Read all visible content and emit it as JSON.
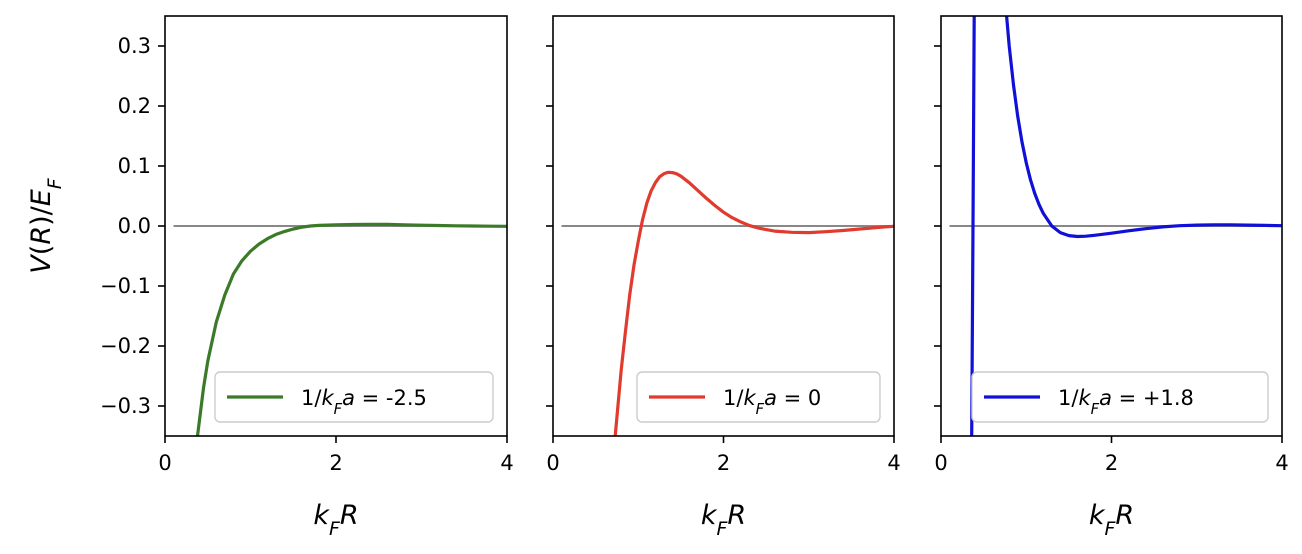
{
  "chart_data": [
    {
      "type": "line",
      "xlabel": "k_F R",
      "ylabel": "V(R)/E_F",
      "xlim": [
        0,
        4
      ],
      "ylim": [
        -0.35,
        0.35
      ],
      "xticks": [
        "0",
        "2",
        "4"
      ],
      "yticks": [
        "0.3",
        "0.2",
        "0.1",
        "0.0",
        "−0.1",
        "−0.2",
        "−0.3"
      ],
      "reference_line": {
        "y": 0,
        "x_from": 0.1,
        "x_to": 4,
        "color": "#888888"
      },
      "legend_position": "lower-right",
      "series": [
        {
          "name": "1/k_F a = -2.5",
          "legend_prefix": "1/",
          "legend_suffix": " = -2.5",
          "color": "#3a7a28",
          "x": [
            0.38,
            0.45,
            0.5,
            0.6,
            0.7,
            0.8,
            0.9,
            1.0,
            1.1,
            1.2,
            1.3,
            1.4,
            1.5,
            1.6,
            1.7,
            1.8,
            1.9,
            2.0,
            2.2,
            2.4,
            2.6,
            2.8,
            3.0,
            3.2,
            3.4,
            3.6,
            3.8,
            4.0
          ],
          "y": [
            -0.35,
            -0.27,
            -0.225,
            -0.16,
            -0.115,
            -0.08,
            -0.058,
            -0.042,
            -0.03,
            -0.021,
            -0.014,
            -0.009,
            -0.005,
            -0.002,
            0.0,
            0.001,
            0.0015,
            0.002,
            0.0025,
            0.0028,
            0.0026,
            0.002,
            0.0014,
            0.0009,
            0.0004,
            0.0,
            -0.0003,
            -0.0005
          ]
        },
        {
          "name": "1/k_F a = 0",
          "legend_prefix": "1/",
          "legend_suffix": " = 0",
          "color": "#e03b2e",
          "x": [
            0.73,
            0.8,
            0.85,
            0.9,
            0.95,
            1.0,
            1.05,
            1.1,
            1.15,
            1.2,
            1.25,
            1.3,
            1.35,
            1.4,
            1.45,
            1.5,
            1.6,
            1.7,
            1.8,
            1.9,
            2.0,
            2.1,
            2.2,
            2.3,
            2.4,
            2.5,
            2.6,
            2.8,
            3.0,
            3.2,
            3.4,
            3.6,
            3.8,
            4.0
          ],
          "y": [
            -0.35,
            -0.24,
            -0.175,
            -0.115,
            -0.065,
            -0.025,
            0.01,
            0.038,
            0.058,
            0.072,
            0.082,
            0.087,
            0.0895,
            0.089,
            0.087,
            0.083,
            0.072,
            0.059,
            0.046,
            0.034,
            0.023,
            0.014,
            0.007,
            0.001,
            -0.003,
            -0.006,
            -0.0085,
            -0.0105,
            -0.011,
            -0.0095,
            -0.0075,
            -0.005,
            -0.0025,
            -0.0005
          ]
        },
        {
          "name": "1/k_F a = +1.8",
          "legend_prefix": "1/",
          "legend_suffix": " = +1.8",
          "color": "#1010d8",
          "x_left": [
            0.36,
            0.375,
            0.39
          ],
          "y_left": [
            -0.35,
            0.0,
            0.35
          ],
          "x": [
            0.77,
            0.8,
            0.85,
            0.9,
            0.95,
            1.0,
            1.05,
            1.1,
            1.15,
            1.2,
            1.3,
            1.4,
            1.5,
            1.6,
            1.7,
            1.8,
            2.0,
            2.2,
            2.4,
            2.6,
            2.8,
            3.0,
            3.2,
            3.4,
            3.6,
            3.8,
            4.0
          ],
          "y": [
            0.35,
            0.3,
            0.235,
            0.183,
            0.14,
            0.105,
            0.077,
            0.054,
            0.036,
            0.021,
            0.0,
            -0.011,
            -0.016,
            -0.0175,
            -0.017,
            -0.0155,
            -0.012,
            -0.008,
            -0.0045,
            -0.0015,
            0.0005,
            0.0015,
            0.002,
            0.002,
            0.0015,
            0.001,
            0.0005
          ]
        }
      ]
    }
  ]
}
